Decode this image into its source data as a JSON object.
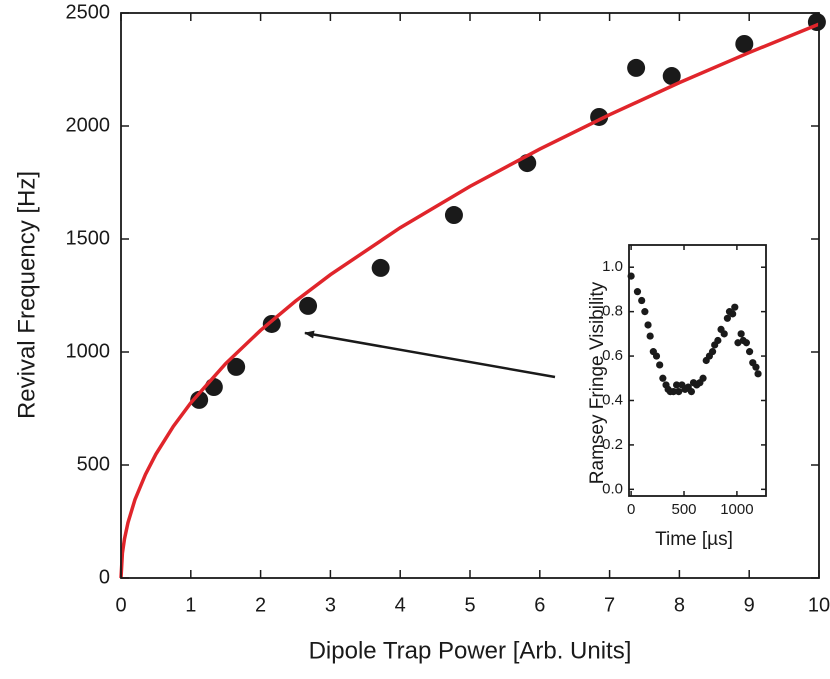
{
  "chart_data": [
    {
      "type": "scatter",
      "xlabel": "Dipole Trap Power [Arb. Units]",
      "ylabel": "Revival Frequency [Hz]",
      "xlim": [
        0,
        10
      ],
      "ylim": [
        0,
        2500
      ],
      "xticks": [
        0,
        1,
        2,
        3,
        4,
        5,
        6,
        7,
        8,
        9,
        10
      ],
      "yticks": [
        0,
        500,
        1000,
        1500,
        2000,
        2500
      ],
      "series": [
        {
          "type": "scatter",
          "color": "#1a1a1a",
          "x": [
            1.12,
            1.33,
            1.65,
            2.16,
            2.68,
            3.72,
            4.77,
            5.82,
            6.85,
            7.38,
            7.89,
            8.93,
            9.97
          ],
          "values": [
            788,
            845,
            934,
            1124,
            1204,
            1372,
            1606,
            1836,
            2040,
            2257,
            2221,
            2363,
            2460
          ]
        },
        {
          "type": "line",
          "color": "#e0252b",
          "x": [
            0,
            0.02,
            0.05,
            0.1,
            0.2,
            0.35,
            0.5,
            0.75,
            1,
            1.5,
            2,
            2.5,
            3,
            4,
            5,
            6,
            7,
            8,
            9,
            10
          ],
          "values": [
            0,
            110,
            173,
            245,
            347,
            458,
            548,
            671,
            775,
            949,
            1096,
            1225,
            1342,
            1550,
            1733,
            1898,
            2050,
            2192,
            2325,
            2451
          ]
        }
      ]
    },
    {
      "type": "scatter",
      "xlabel": "Time [µs]",
      "ylabel": "Ramsey Fringe Visibility",
      "xlim": [
        -20,
        1275
      ],
      "ylim": [
        -0.03,
        1.1
      ],
      "xticks": [
        0,
        500,
        1000
      ],
      "yticks": [
        {
          "value": 0,
          "label": "0.0"
        },
        {
          "value": 0.2,
          "label": "0.2"
        },
        {
          "value": 0.4,
          "label": "0.4"
        },
        {
          "value": 0.6,
          "label": "0.6"
        },
        {
          "value": 0.8,
          "label": "0.8"
        },
        {
          "value": 1,
          "label": "1.0"
        }
      ],
      "series": [
        {
          "type": "scatter",
          "color": "#1a1a1a",
          "x": [
            0,
            60,
            100,
            130,
            160,
            180,
            210,
            240,
            270,
            300,
            330,
            350,
            370,
            400,
            430,
            450,
            480,
            510,
            540,
            570,
            590,
            620,
            650,
            680,
            710,
            740,
            770,
            790,
            820,
            850,
            880,
            910,
            930,
            960,
            980,
            1010,
            1040,
            1060,
            1090,
            1120,
            1150,
            1180,
            1200
          ],
          "values": [
            0.96,
            0.89,
            0.85,
            0.8,
            0.74,
            0.69,
            0.62,
            0.6,
            0.56,
            0.5,
            0.47,
            0.45,
            0.44,
            0.44,
            0.47,
            0.44,
            0.47,
            0.45,
            0.46,
            0.44,
            0.48,
            0.47,
            0.48,
            0.5,
            0.58,
            0.6,
            0.62,
            0.65,
            0.67,
            0.72,
            0.7,
            0.77,
            0.8,
            0.79,
            0.82,
            0.66,
            0.7,
            0.67,
            0.66,
            0.62,
            0.57,
            0.55,
            0.52
          ]
        }
      ]
    }
  ]
}
